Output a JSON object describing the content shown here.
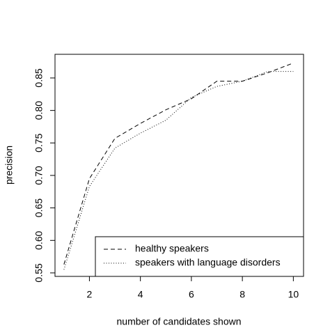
{
  "chart_data": {
    "type": "line",
    "x_label": "number of candidates shown",
    "y_label": "precision",
    "x": [
      1,
      2,
      3,
      4,
      5,
      6,
      7,
      8,
      9,
      10
    ],
    "series": [
      {
        "name": "healthy speakers",
        "color": "#000000",
        "dash": "dashed",
        "values": [
          0.563,
          0.695,
          0.757,
          0.78,
          0.801,
          0.818,
          0.845,
          0.845,
          0.858,
          0.873
        ]
      },
      {
        "name": "speakers with language disorders",
        "color": "#000000",
        "dash": "dotted",
        "values": [
          0.555,
          0.683,
          0.742,
          0.765,
          0.785,
          0.82,
          0.837,
          0.845,
          0.86,
          0.86
        ]
      }
    ],
    "xlim": [
      0.65,
      10.4
    ],
    "xticks": [
      2,
      4,
      6,
      8,
      10
    ],
    "ylim": [
      0.5446,
      0.8864
    ],
    "yticks": [
      {
        "value": 0.55,
        "label": "0.55"
      },
      {
        "value": 0.6,
        "label": "0.60"
      },
      {
        "value": 0.65,
        "label": "0.65"
      },
      {
        "value": 0.7,
        "label": "0.70"
      },
      {
        "value": 0.75,
        "label": "0.75"
      },
      {
        "value": 0.8,
        "label": "0.80"
      },
      {
        "value": 0.85,
        "label": "0.85"
      }
    ],
    "legend": "bottom-right",
    "grid": false
  }
}
